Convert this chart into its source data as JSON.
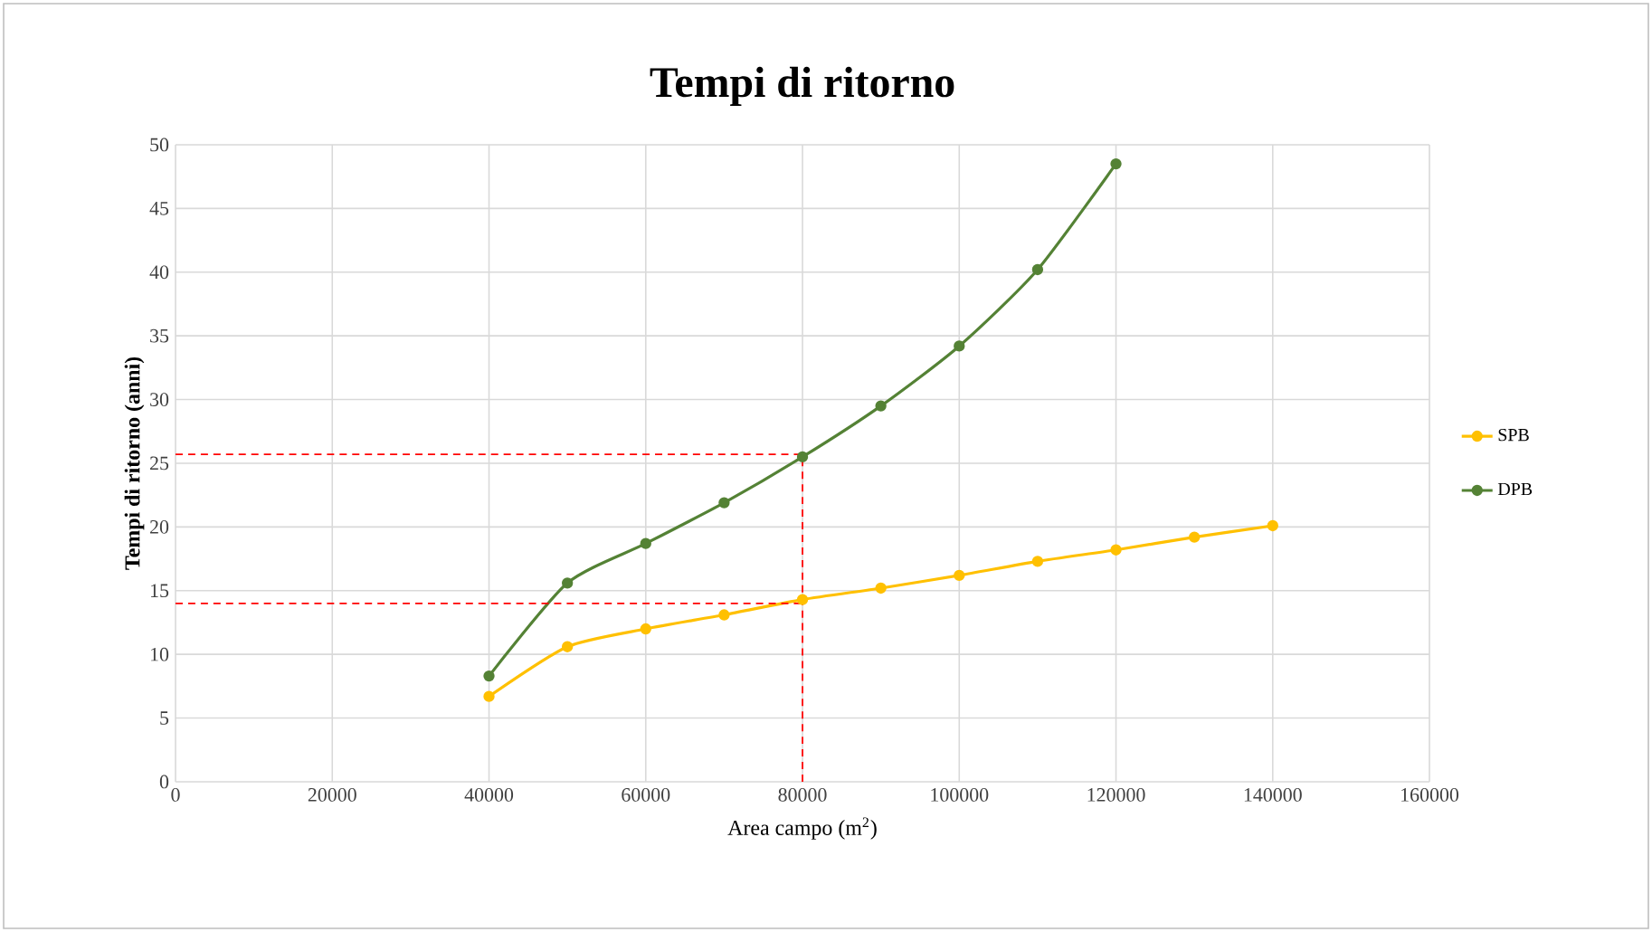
{
  "chart_data": {
    "type": "line",
    "title": "Tempi di ritorno",
    "xlabel": "Area campo (m$^{2}$)",
    "ylabel": "Tempi di ritorno (anni)",
    "xlim": [
      0,
      160000
    ],
    "xticks": [
      0,
      20000,
      40000,
      60000,
      80000,
      100000,
      120000,
      140000,
      160000
    ],
    "ylim": [
      0,
      50
    ],
    "yticks": [
      0,
      5,
      10,
      15,
      20,
      25,
      30,
      35,
      40,
      45,
      50
    ],
    "grid": true,
    "legend": "right",
    "marker": "circle",
    "series": [
      {
        "name": "SPB",
        "color": "#ffc000",
        "x": [
          40000,
          50000,
          60000,
          70000,
          80000,
          90000,
          100000,
          110000,
          120000,
          130000,
          140000
        ],
        "values": [
          6.7,
          10.6,
          12.0,
          13.1,
          14.3,
          15.2,
          16.2,
          17.3,
          18.2,
          19.2,
          20.1
        ]
      },
      {
        "name": "DPB",
        "color": "#548235",
        "x": [
          40000,
          50000,
          60000,
          70000,
          80000,
          90000,
          100000,
          110000,
          120000
        ],
        "values": [
          8.3,
          15.6,
          18.7,
          21.9,
          25.5,
          29.5,
          34.2,
          40.2,
          48.5
        ]
      },
      {
        "color": "#ff0000",
        "line_style": "dashed",
        "marker": "none",
        "x": [
          0,
          80000
        ],
        "values": [
          25.7,
          25.7
        ]
      },
      {
        "color": "#ff0000",
        "line_style": "dashed",
        "marker": "none",
        "x": [
          0,
          80000
        ],
        "values": [
          14.0,
          14.0
        ]
      },
      {
        "color": "#ff0000",
        "line_style": "dashed",
        "marker": "none",
        "x": [
          80000,
          80000
        ],
        "values": [
          0,
          25.7
        ]
      }
    ]
  }
}
